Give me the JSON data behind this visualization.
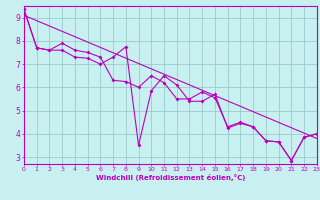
{
  "xlabel": "Windchill (Refroidissement éolien,°C)",
  "bg_color": "#c8f0f0",
  "grid_color": "#99cccc",
  "line_color": "#bb00bb",
  "xlabel_bg": "#9900aa",
  "x_min": 0,
  "x_max": 23,
  "y_min": 2.7,
  "y_max": 9.5,
  "series1": [
    [
      0,
      9.35
    ],
    [
      1,
      7.7
    ],
    [
      2,
      7.6
    ],
    [
      3,
      7.6
    ],
    [
      4,
      7.3
    ],
    [
      5,
      7.25
    ],
    [
      6,
      7.0
    ],
    [
      7,
      7.3
    ],
    [
      8,
      7.75
    ],
    [
      9,
      3.5
    ],
    [
      10,
      5.85
    ],
    [
      11,
      6.5
    ],
    [
      12,
      6.1
    ],
    [
      13,
      5.4
    ],
    [
      14,
      5.4
    ],
    [
      15,
      5.7
    ],
    [
      16,
      4.25
    ],
    [
      17,
      4.45
    ],
    [
      18,
      4.3
    ],
    [
      19,
      3.7
    ],
    [
      20,
      3.65
    ],
    [
      21,
      2.85
    ],
    [
      22,
      3.85
    ],
    [
      23,
      4.0
    ]
  ],
  "series2": [
    [
      0,
      9.35
    ],
    [
      1,
      7.7
    ],
    [
      2,
      7.6
    ],
    [
      3,
      7.9
    ],
    [
      4,
      7.6
    ],
    [
      5,
      7.5
    ],
    [
      6,
      7.3
    ],
    [
      7,
      6.3
    ],
    [
      8,
      6.25
    ],
    [
      9,
      6.0
    ],
    [
      10,
      6.5
    ],
    [
      11,
      6.2
    ],
    [
      12,
      5.5
    ],
    [
      13,
      5.5
    ],
    [
      14,
      5.8
    ],
    [
      15,
      5.55
    ],
    [
      16,
      4.3
    ],
    [
      17,
      4.5
    ],
    [
      18,
      4.3
    ],
    [
      19,
      3.7
    ],
    [
      20,
      3.65
    ],
    [
      21,
      2.85
    ],
    [
      22,
      3.85
    ],
    [
      23,
      4.0
    ]
  ],
  "trend_x": [
    0,
    23
  ],
  "trend_y": [
    9.1,
    3.8
  ],
  "yticks": [
    3,
    4,
    5,
    6,
    7,
    8,
    9
  ],
  "xticks": [
    0,
    1,
    2,
    3,
    4,
    5,
    6,
    7,
    8,
    9,
    10,
    11,
    12,
    13,
    14,
    15,
    16,
    17,
    18,
    19,
    20,
    21,
    22,
    23
  ]
}
